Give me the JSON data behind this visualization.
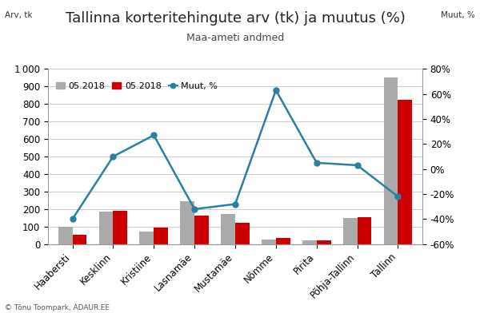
{
  "title": "Tallinna korteritehingute arv (tk) ja muutus (%)",
  "subtitle": "Maa-ameti andmed",
  "ylabel_left": "Arv, tk",
  "ylabel_right": "Muut, %",
  "categories": [
    "Haabersti",
    "Kesklinn",
    "Kristiine",
    "Lasnamäe",
    "Mustamäe",
    "Nõmme",
    "Pirita",
    "Põhja-Tallinn",
    "Tallinn"
  ],
  "bar_prev": [
    100,
    185,
    70,
    245,
    170,
    25,
    20,
    150,
    950
  ],
  "bar_curr": [
    55,
    190,
    95,
    165,
    120,
    35,
    20,
    155,
    825
  ],
  "line_pct": [
    -40,
    10,
    27,
    -32,
    -28,
    63,
    5,
    3,
    -22
  ],
  "color_prev": "#aaaaaa",
  "color_curr": "#cc0000",
  "color_line": "#2980a0",
  "ylim_left": [
    0,
    1000
  ],
  "ylim_right": [
    -60,
    80
  ],
  "yticks_left": [
    0,
    100,
    200,
    300,
    400,
    500,
    600,
    700,
    800,
    900,
    1000
  ],
  "yticks_right": [
    -60,
    -40,
    -20,
    0,
    20,
    40,
    60,
    80
  ],
  "legend_labels": [
    "05.2018",
    "05.2018",
    "Muut, %"
  ],
  "bg_color": "#ffffff",
  "grid_color": "#cccccc",
  "title_fontsize": 13,
  "subtitle_fontsize": 9,
  "tick_fontsize": 8.5,
  "bar_width": 0.35,
  "watermark": "© Tõnu Toompark, ADAUR.EE"
}
